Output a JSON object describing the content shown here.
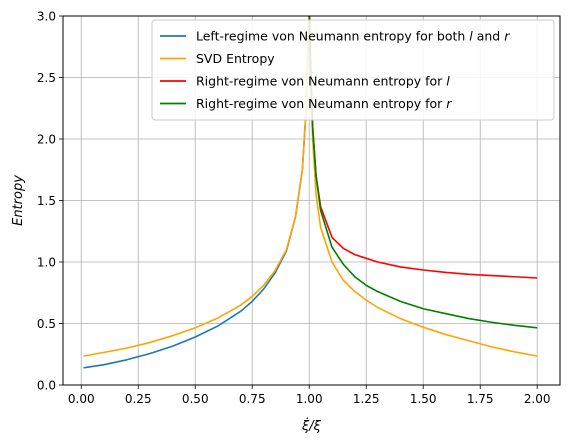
{
  "chart_data": {
    "type": "line",
    "title": "",
    "xlabel": "ξ̇/ξ",
    "ylabel": "Entropy",
    "xlim": [
      -0.08,
      2.1
    ],
    "ylim": [
      0.0,
      3.0
    ],
    "xticks": [
      0.0,
      0.25,
      0.5,
      0.75,
      1.0,
      1.25,
      1.5,
      1.75,
      2.0
    ],
    "xtick_labels": [
      "0.00",
      "0.25",
      "0.50",
      "0.75",
      "1.00",
      "1.25",
      "1.50",
      "1.75",
      "2.00"
    ],
    "yticks": [
      0.0,
      0.5,
      1.0,
      1.5,
      2.0,
      2.5,
      3.0
    ],
    "ytick_labels": [
      "0.0",
      "0.5",
      "1.0",
      "1.5",
      "2.0",
      "2.5",
      "3.0"
    ],
    "grid": true,
    "legend_position": "top-right",
    "series": [
      {
        "name": "Left-regime von Neumann entropy for both l and r",
        "legend_parts": [
          "Left-regime von Neumann entropy for both ",
          "l",
          " and ",
          "r"
        ],
        "color": "#1f77b4",
        "points": [
          [
            0.01,
            0.14
          ],
          [
            0.1,
            0.165
          ],
          [
            0.2,
            0.205
          ],
          [
            0.3,
            0.255
          ],
          [
            0.4,
            0.315
          ],
          [
            0.5,
            0.39
          ],
          [
            0.6,
            0.48
          ],
          [
            0.7,
            0.6
          ],
          [
            0.75,
            0.68
          ],
          [
            0.8,
            0.78
          ],
          [
            0.85,
            0.91
          ],
          [
            0.9,
            1.09
          ],
          [
            0.94,
            1.37
          ],
          [
            0.97,
            1.75
          ],
          [
            0.985,
            2.2
          ],
          [
            0.995,
            2.8
          ],
          [
            0.999,
            3.0
          ]
        ]
      },
      {
        "name": "SVD Entropy",
        "legend_parts": [
          "SVD Entropy"
        ],
        "color": "#ffa500",
        "points": [
          [
            0.01,
            0.235
          ],
          [
            0.1,
            0.265
          ],
          [
            0.2,
            0.3
          ],
          [
            0.3,
            0.345
          ],
          [
            0.4,
            0.4
          ],
          [
            0.5,
            0.465
          ],
          [
            0.6,
            0.545
          ],
          [
            0.7,
            0.65
          ],
          [
            0.75,
            0.72
          ],
          [
            0.8,
            0.81
          ],
          [
            0.85,
            0.93
          ],
          [
            0.9,
            1.1
          ],
          [
            0.94,
            1.37
          ],
          [
            0.97,
            1.75
          ],
          [
            0.985,
            2.2
          ],
          [
            0.995,
            2.8
          ],
          [
            0.999,
            3.0
          ],
          [
            1.001,
            3.0
          ],
          [
            1.005,
            2.6
          ],
          [
            1.015,
            2.0
          ],
          [
            1.03,
            1.55
          ],
          [
            1.05,
            1.28
          ],
          [
            1.1,
            1.0
          ],
          [
            1.15,
            0.85
          ],
          [
            1.2,
            0.76
          ],
          [
            1.25,
            0.69
          ],
          [
            1.3,
            0.63
          ],
          [
            1.4,
            0.54
          ],
          [
            1.5,
            0.47
          ],
          [
            1.6,
            0.41
          ],
          [
            1.7,
            0.36
          ],
          [
            1.8,
            0.31
          ],
          [
            1.9,
            0.27
          ],
          [
            2.0,
            0.235
          ]
        ]
      },
      {
        "name": "Right-regime von Neumann entropy for l",
        "legend_parts": [
          "Right-regime von Neumann entropy for ",
          "l"
        ],
        "color": "#ff0000",
        "points": [
          [
            1.001,
            3.0
          ],
          [
            1.005,
            2.65
          ],
          [
            1.015,
            2.1
          ],
          [
            1.03,
            1.7
          ],
          [
            1.05,
            1.45
          ],
          [
            1.1,
            1.2
          ],
          [
            1.15,
            1.11
          ],
          [
            1.2,
            1.06
          ],
          [
            1.25,
            1.03
          ],
          [
            1.3,
            1.0
          ],
          [
            1.4,
            0.96
          ],
          [
            1.5,
            0.935
          ],
          [
            1.6,
            0.915
          ],
          [
            1.7,
            0.9
          ],
          [
            1.8,
            0.89
          ],
          [
            1.9,
            0.88
          ],
          [
            2.0,
            0.87
          ]
        ]
      },
      {
        "name": "Right-regime von Neumann entropy for r",
        "legend_parts": [
          "Right-regime von Neumann entropy for ",
          "r"
        ],
        "color": "#008000",
        "points": [
          [
            1.001,
            3.0
          ],
          [
            1.005,
            2.65
          ],
          [
            1.015,
            2.1
          ],
          [
            1.03,
            1.7
          ],
          [
            1.05,
            1.42
          ],
          [
            1.1,
            1.12
          ],
          [
            1.15,
            0.98
          ],
          [
            1.2,
            0.88
          ],
          [
            1.25,
            0.81
          ],
          [
            1.3,
            0.76
          ],
          [
            1.4,
            0.68
          ],
          [
            1.5,
            0.62
          ],
          [
            1.6,
            0.58
          ],
          [
            1.7,
            0.54
          ],
          [
            1.8,
            0.51
          ],
          [
            1.9,
            0.485
          ],
          [
            2.0,
            0.465
          ]
        ]
      }
    ]
  }
}
